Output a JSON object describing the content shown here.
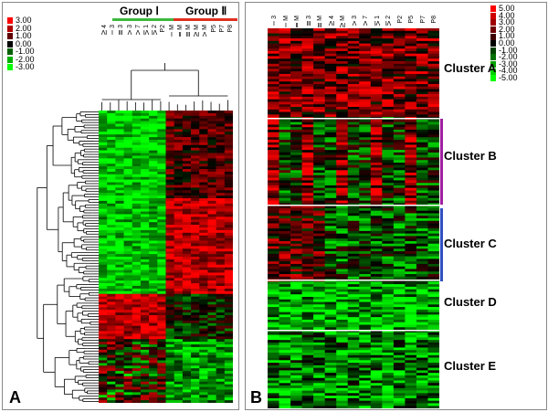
{
  "panel_a": {
    "label": "A",
    "scale": [
      "3.00",
      "2.00",
      "1.00",
      "0.00",
      "-1.00",
      "-2.00",
      "-3.00"
    ],
    "scale_colors": [
      "#ff0000",
      "#b00000",
      "#600000",
      "#000000",
      "#006000",
      "#00b000",
      "#00ff00"
    ],
    "group1": "Group Ⅰ",
    "group2": "Group Ⅱ",
    "group1_color": "#3cb83c",
    "group2_color": "#e03020",
    "columns": [
      "Ⅳ4",
      "Ⅰ3",
      "Ⅲ3",
      "Ⅴ3",
      "Ⅴ7",
      "Ⅵ1",
      "Ⅵ2",
      "P2",
      "ⅠM",
      "ⅡM",
      "ⅢM",
      "ⅣM",
      "ⅤM",
      "P5",
      "P7",
      "P8"
    ]
  },
  "panel_b": {
    "label": "B",
    "scale": [
      "5.00",
      "4.00",
      "3.00",
      "2.00",
      "1.00",
      "0.00",
      "-1.00",
      "-2.00",
      "-3.00",
      "-4.00",
      "-5.00"
    ],
    "scale_colors": [
      "#ff0000",
      "#d00000",
      "#a00000",
      "#700000",
      "#400000",
      "#000000",
      "#004000",
      "#007000",
      "#00a000",
      "#00d000",
      "#00ff00"
    ],
    "columns": [
      "Ⅰ3",
      "ⅠM",
      "ⅡM",
      "Ⅲ3",
      "ⅢM",
      "Ⅳ4",
      "ⅣM",
      "Ⅴ3",
      "Ⅴ7",
      "Ⅵ1",
      "Ⅵ2",
      "P2",
      "P5",
      "P7",
      "P8"
    ],
    "clusters": [
      "Cluster  A",
      "Cluster  B",
      "Cluster  C",
      "Cluster  D",
      "Cluster  E"
    ],
    "bracket_colors": [
      "#a020a0",
      "#3050c0"
    ]
  }
}
